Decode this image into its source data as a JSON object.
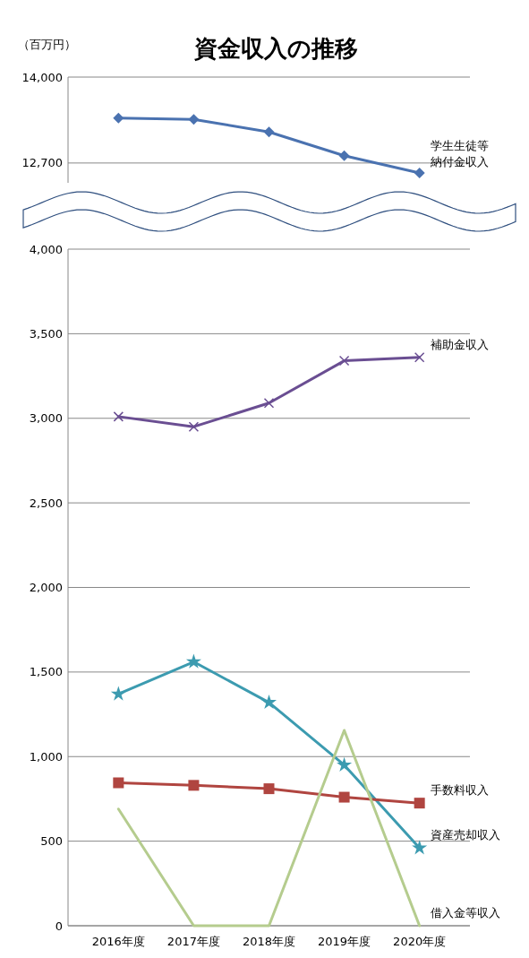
{
  "chart_data": [
    {
      "type": "line",
      "title": "資金収入の推移",
      "ylabel": "（百万円）",
      "categories": [
        null,
        null,
        null,
        null,
        null
      ],
      "ylim": [
        12400,
        14000
      ],
      "yticks": [
        {
          "value": 12700,
          "label": "12,700"
        },
        {
          "value": 14000,
          "label": "14,000"
        }
      ],
      "grid": "y",
      "legend": false,
      "tick_labels": "y",
      "series": [
        {
          "name": "学生生徒等納付金収入",
          "color": "#4a72b0",
          "marker": "diamond",
          "values": [
            13380,
            13360,
            13170,
            12810,
            12550
          ]
        }
      ]
    },
    {
      "type": "line",
      "categories": [
        "2016年度",
        "2017年度",
        "2018年度",
        "2019年度",
        "2020年度"
      ],
      "ylim": [
        0,
        4000
      ],
      "yticks": [
        0,
        {
          "value": 500,
          "label": "500"
        },
        {
          "value": 1000,
          "label": "1,000"
        },
        {
          "value": 1500,
          "label": "1,500"
        },
        {
          "value": 2000,
          "label": "2,000"
        },
        {
          "value": 2500,
          "label": "2,500"
        },
        {
          "value": 3000,
          "label": "3,000"
        },
        {
          "value": 3500,
          "label": "3,500"
        },
        {
          "value": 4000,
          "label": "4,000"
        }
      ],
      "grid": "y",
      "legend": false,
      "series": [
        {
          "name": "補助金収入",
          "color": "#6a4e92",
          "marker": "cross",
          "values": [
            3010,
            2950,
            3090,
            3340,
            3360
          ]
        },
        {
          "name": "資産売却収入",
          "color": "#3c9bb0",
          "marker": "star",
          "values": [
            1370,
            1560,
            1320,
            950,
            460
          ]
        },
        {
          "name": "手数料収入",
          "color": "#b04540",
          "marker": "square",
          "values": [
            845,
            830,
            810,
            760,
            725
          ]
        },
        {
          "name": "借入金等収入",
          "color": "#b5cc8e",
          "marker": "none",
          "values": [
            690,
            0,
            0,
            1155,
            0
          ]
        }
      ]
    }
  ]
}
